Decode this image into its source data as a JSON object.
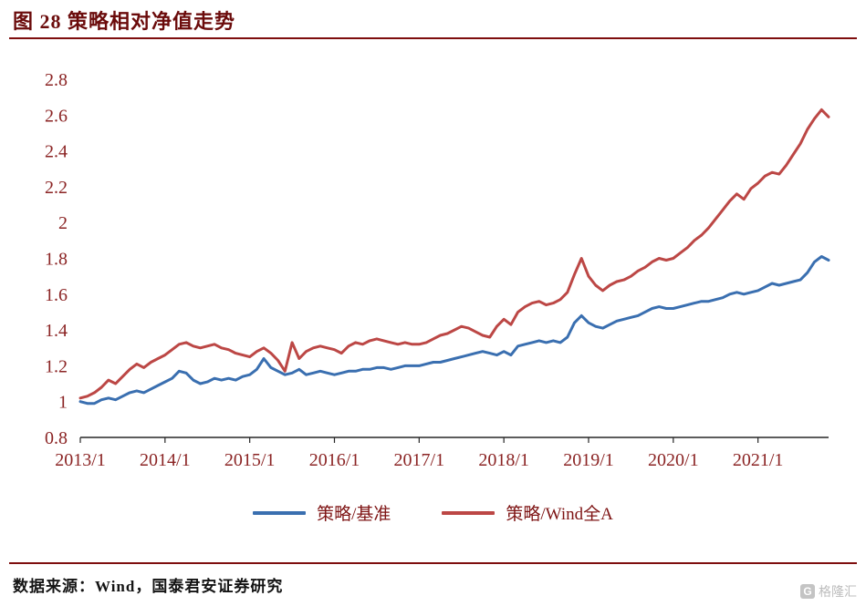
{
  "title": "图 28 策略相对净值走势",
  "source": "数据来源：Wind，国泰君安证券研究",
  "watermark": {
    "logo_letter": "G",
    "text": "格隆汇"
  },
  "colors": {
    "title_text": "#6b0b0b",
    "rule": "#7e0e0e",
    "tick_text": "#8b2424",
    "axis_line": "#262626",
    "series_blue": "#3a6fb0",
    "series_red": "#bc4745"
  },
  "chart_data": {
    "type": "line",
    "title": "策略相对净值走势",
    "xlabel": "",
    "ylabel": "",
    "ylim": [
      0.8,
      2.8
    ],
    "grid": false,
    "legend_position": "bottom-center",
    "x_unit": "months since 2013/1",
    "x_ticks": [
      "2013/1",
      "2014/1",
      "2015/1",
      "2016/1",
      "2017/1",
      "2018/1",
      "2019/1",
      "2020/1",
      "2021/1"
    ],
    "x_tick_months": [
      0,
      12,
      24,
      36,
      48,
      60,
      72,
      84,
      96
    ],
    "y_ticks": [
      "0.8",
      "1",
      "1.2",
      "1.4",
      "1.6",
      "1.8",
      "2",
      "2.2",
      "2.4",
      "2.6",
      "2.8"
    ],
    "series": [
      {
        "name": "策略/基准",
        "color": "#3a6fb0",
        "y": [
          1.0,
          0.99,
          0.99,
          1.01,
          1.02,
          1.01,
          1.03,
          1.05,
          1.06,
          1.05,
          1.07,
          1.09,
          1.11,
          1.13,
          1.17,
          1.16,
          1.12,
          1.1,
          1.11,
          1.13,
          1.12,
          1.13,
          1.12,
          1.14,
          1.15,
          1.18,
          1.24,
          1.19,
          1.17,
          1.15,
          1.16,
          1.18,
          1.15,
          1.16,
          1.17,
          1.16,
          1.15,
          1.16,
          1.17,
          1.17,
          1.18,
          1.18,
          1.19,
          1.19,
          1.18,
          1.19,
          1.2,
          1.2,
          1.2,
          1.21,
          1.22,
          1.22,
          1.23,
          1.24,
          1.25,
          1.26,
          1.27,
          1.28,
          1.27,
          1.26,
          1.28,
          1.26,
          1.31,
          1.32,
          1.33,
          1.34,
          1.33,
          1.34,
          1.33,
          1.36,
          1.44,
          1.48,
          1.44,
          1.42,
          1.41,
          1.43,
          1.45,
          1.46,
          1.47,
          1.48,
          1.5,
          1.52,
          1.53,
          1.52,
          1.52,
          1.53,
          1.54,
          1.55,
          1.56,
          1.56,
          1.57,
          1.58,
          1.6,
          1.61,
          1.6,
          1.61,
          1.62,
          1.64,
          1.66,
          1.65,
          1.66,
          1.67,
          1.68,
          1.72,
          1.78,
          1.81,
          1.79
        ]
      },
      {
        "name": "策略/Wind全A",
        "color": "#bc4745",
        "y": [
          1.02,
          1.03,
          1.05,
          1.08,
          1.12,
          1.1,
          1.14,
          1.18,
          1.21,
          1.19,
          1.22,
          1.24,
          1.26,
          1.29,
          1.32,
          1.33,
          1.31,
          1.3,
          1.31,
          1.32,
          1.3,
          1.29,
          1.27,
          1.26,
          1.25,
          1.28,
          1.3,
          1.27,
          1.23,
          1.17,
          1.33,
          1.24,
          1.28,
          1.3,
          1.31,
          1.3,
          1.29,
          1.27,
          1.31,
          1.33,
          1.32,
          1.34,
          1.35,
          1.34,
          1.33,
          1.32,
          1.33,
          1.32,
          1.32,
          1.33,
          1.35,
          1.37,
          1.38,
          1.4,
          1.42,
          1.41,
          1.39,
          1.37,
          1.36,
          1.42,
          1.46,
          1.43,
          1.5,
          1.53,
          1.55,
          1.56,
          1.54,
          1.55,
          1.57,
          1.61,
          1.71,
          1.8,
          1.7,
          1.65,
          1.62,
          1.65,
          1.67,
          1.68,
          1.7,
          1.73,
          1.75,
          1.78,
          1.8,
          1.79,
          1.8,
          1.83,
          1.86,
          1.9,
          1.93,
          1.97,
          2.02,
          2.07,
          2.12,
          2.16,
          2.13,
          2.19,
          2.22,
          2.26,
          2.28,
          2.27,
          2.32,
          2.38,
          2.44,
          2.52,
          2.58,
          2.63,
          2.59
        ]
      }
    ]
  }
}
